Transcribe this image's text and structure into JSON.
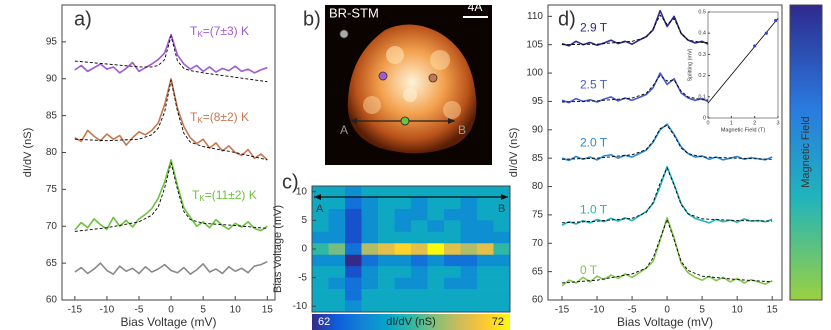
{
  "chart_data": [
    {
      "type": "line",
      "panel": "a)",
      "xlabel": "Bias Voltage (mV)",
      "ylabel": "dI/dV (nS)",
      "xlim": [
        -17,
        16.2
      ],
      "ylim": [
        60,
        100
      ],
      "xticks": [
        -15,
        -10,
        -5,
        0,
        5,
        10,
        15
      ],
      "yticks": [
        60,
        65,
        70,
        75,
        80,
        85,
        90,
        95
      ],
      "x": [
        -15,
        -14,
        -13,
        -12,
        -11,
        -10,
        -9,
        -8,
        -7,
        -6,
        -5,
        -4,
        -3,
        -2,
        -1,
        0,
        1,
        2,
        3,
        4,
        5,
        6,
        7,
        8,
        9,
        10,
        11,
        12,
        13,
        14,
        15
      ],
      "series": [
        {
          "color": "#a05ad2",
          "values": [
            91.2,
            91.8,
            91.0,
            91.5,
            92.0,
            91.3,
            91.6,
            90.8,
            91.4,
            92.2,
            91.0,
            91.5,
            92.0,
            92.6,
            93.5,
            96.0,
            93.2,
            92.0,
            91.3,
            91.8,
            91.0,
            91.6,
            90.9,
            91.4,
            91.1,
            91.7,
            91.0,
            91.3,
            90.8,
            91.2,
            91.5
          ]
        },
        {
          "color": "#c87850",
          "values": [
            82.0,
            81.5,
            83.0,
            82.2,
            81.6,
            82.5,
            81.8,
            82.3,
            81.0,
            82.0,
            82.8,
            82.4,
            83.0,
            84.0,
            86.5,
            90.0,
            86.0,
            83.5,
            82.0,
            81.2,
            81.8,
            80.6,
            81.3,
            80.2,
            80.9,
            80.0,
            79.6,
            80.4,
            79.2,
            79.8,
            79.0
          ]
        },
        {
          "color": "#6cc23e",
          "values": [
            69.5,
            70.5,
            69.8,
            71.0,
            70.2,
            69.6,
            71.2,
            70.0,
            70.8,
            69.9,
            71.0,
            71.6,
            72.4,
            73.8,
            76.0,
            79.0,
            75.5,
            72.5,
            71.2,
            70.0,
            70.6,
            69.8,
            70.9,
            70.1,
            69.6,
            70.4,
            69.9,
            70.6,
            69.7,
            69.4,
            70.0
          ]
        },
        {
          "color": "#8a8a8a",
          "values": [
            63.8,
            64.4,
            63.6,
            64.2,
            65.0,
            64.0,
            63.5,
            64.6,
            63.9,
            64.3,
            63.6,
            64.5,
            63.8,
            64.2,
            64.8,
            64.0,
            63.7,
            64.4,
            63.5,
            64.1,
            64.9,
            63.8,
            64.2,
            63.6,
            64.5,
            63.9,
            64.3,
            63.7,
            64.6,
            64.8,
            65.2
          ]
        },
        {
          "color": "#000000",
          "dashed": true,
          "x": [
            -15,
            -10,
            -5,
            -3,
            -2,
            -1,
            0,
            1,
            2,
            3,
            5,
            10,
            15
          ],
          "values": [
            92.4,
            92.0,
            91.6,
            91.6,
            91.8,
            92.6,
            95.8,
            92.4,
            91.4,
            91.1,
            90.8,
            90.2,
            89.6
          ]
        },
        {
          "color": "#000000",
          "dashed": true,
          "x": [
            -15,
            -10,
            -5,
            -3,
            -2,
            -1,
            0,
            1,
            2,
            3,
            5,
            10,
            15
          ],
          "values": [
            81.8,
            81.6,
            81.8,
            82.4,
            83.3,
            85.5,
            89.8,
            85.6,
            82.6,
            81.4,
            80.8,
            80.0,
            79.0
          ]
        },
        {
          "color": "#000000",
          "dashed": true,
          "x": [
            -15,
            -10,
            -5,
            -3,
            -2,
            -1,
            0,
            1,
            2,
            3,
            5,
            10,
            15
          ],
          "values": [
            69.3,
            69.8,
            70.6,
            71.5,
            72.6,
            75.2,
            78.6,
            75.0,
            72.0,
            70.9,
            70.4,
            70.1,
            69.7
          ]
        }
      ],
      "annotations": [
        {
          "main": "T",
          "sub": "K",
          "rest": "=(7±3) K",
          "color": "#a05ad2"
        },
        {
          "main": "T",
          "sub": "K",
          "rest": "=(8±2) K",
          "color": "#c87850"
        },
        {
          "main": "T",
          "sub": "K",
          "rest": "=(11±2) K",
          "color": "#6cc23e"
        }
      ]
    },
    {
      "type": "image",
      "panel": "b)",
      "title": "BR-STM",
      "scale_label": "4Å",
      "point_labels": [
        "A",
        "B"
      ]
    },
    {
      "type": "heatmap",
      "panel": "c)",
      "ylabel": "Bias Voltage (mV)",
      "ylim": [
        -11,
        11
      ],
      "yticks": [
        -10,
        -5,
        0,
        5,
        10
      ],
      "y": [
        10,
        8,
        6,
        4,
        2,
        0,
        -2,
        -4,
        -6,
        -8,
        -10
      ],
      "z": [
        [
          66,
          66,
          65,
          66,
          66,
          66,
          66,
          66,
          66,
          66,
          66,
          66
        ],
        [
          66,
          66,
          64,
          65,
          66,
          66,
          65,
          66,
          66,
          65,
          66,
          66
        ],
        [
          66,
          65,
          63,
          65,
          66,
          65,
          65,
          66,
          65,
          65,
          66,
          66
        ],
        [
          66,
          65,
          63,
          65,
          66,
          65,
          66,
          65,
          66,
          65,
          65,
          66
        ],
        [
          65,
          65,
          63,
          65,
          66,
          66,
          66,
          66,
          66,
          65,
          65,
          65
        ],
        [
          67,
          68,
          64,
          69,
          70,
          71,
          70,
          72,
          70,
          69,
          70,
          67
        ],
        [
          65,
          65,
          62,
          64,
          65,
          65,
          64,
          65,
          64,
          64,
          65,
          65
        ],
        [
          66,
          66,
          63,
          65,
          66,
          66,
          65,
          66,
          66,
          65,
          66,
          66
        ],
        [
          66,
          65,
          64,
          65,
          66,
          65,
          65,
          66,
          65,
          65,
          66,
          66
        ],
        [
          66,
          66,
          64,
          66,
          66,
          66,
          66,
          66,
          66,
          66,
          66,
          66
        ],
        [
          66,
          66,
          65,
          66,
          66,
          66,
          66,
          66,
          66,
          66,
          66,
          66
        ]
      ],
      "zlim": [
        62,
        72
      ],
      "colorbar_label": "dI/dV (nS)",
      "point_labels": [
        "A",
        "B"
      ],
      "colorscale": [
        "#352a87",
        "#0f5cdd",
        "#1481d6",
        "#06a4ca",
        "#2eb7a4",
        "#87bf77",
        "#d1bb59",
        "#fec832",
        "#f9fb0e"
      ]
    },
    {
      "type": "line",
      "panel": "d)",
      "xlabel": "Bias Voltage (mV)",
      "ylabel": "dI/dV (nS)",
      "xlim": [
        -17,
        16.4
      ],
      "ylim": [
        60,
        112
      ],
      "xticks": [
        -15,
        -10,
        -5,
        0,
        5,
        10,
        15
      ],
      "yticks": [
        60,
        65,
        70,
        75,
        80,
        85,
        90,
        95,
        100,
        105,
        110
      ],
      "x": [
        -15,
        -14,
        -13,
        -12,
        -11,
        -10,
        -9,
        -8,
        -7,
        -6,
        -5,
        -4,
        -3,
        -2,
        -1,
        0,
        1,
        2,
        3,
        4,
        5,
        6,
        7,
        8,
        9,
        10,
        11,
        12,
        13,
        14,
        15
      ],
      "colorbar_label": "Magnetic Field",
      "series": [
        {
          "name": "2.9 T",
          "color": "#2e2a8c",
          "values": [
            105.2,
            104.8,
            105.6,
            105.0,
            105.4,
            104.9,
            105.3,
            105.8,
            105.2,
            105.6,
            105.1,
            105.8,
            106.4,
            107.6,
            111.0,
            108.2,
            110.0,
            107.0,
            105.8,
            105.3,
            105.6,
            105.0,
            105.4,
            104.8,
            105.2,
            105.5,
            104.9,
            105.3,
            105.1,
            105.0,
            105.4
          ]
        },
        {
          "name": "2.5 T",
          "color": "#4658d2",
          "values": [
            95.2,
            94.8,
            95.5,
            95.0,
            95.3,
            94.9,
            95.4,
            95.8,
            95.1,
            95.6,
            95.2,
            95.7,
            96.2,
            97.4,
            100.0,
            98.0,
            99.0,
            96.5,
            95.6,
            95.2,
            95.5,
            94.9,
            95.3,
            94.8,
            95.2,
            95.4,
            94.9,
            95.2,
            95.0,
            94.8,
            95.3
          ]
        },
        {
          "name": "2.0 T",
          "color": "#2a8ad8",
          "values": [
            85.0,
            84.6,
            85.3,
            84.8,
            85.2,
            84.7,
            85.4,
            85.6,
            85.0,
            85.5,
            85.2,
            85.8,
            86.4,
            87.8,
            90.0,
            91.0,
            89.2,
            87.0,
            85.8,
            85.2,
            85.4,
            84.8,
            85.2,
            84.7,
            85.0,
            85.3,
            84.8,
            85.1,
            84.9,
            84.7,
            85.2
          ]
        },
        {
          "name": "1.0 T",
          "color": "#20b4bc",
          "values": [
            73.2,
            73.8,
            73.4,
            74.0,
            73.6,
            74.2,
            73.8,
            74.4,
            73.9,
            74.5,
            74.0,
            74.8,
            75.6,
            77.0,
            80.0,
            83.5,
            80.4,
            77.0,
            75.2,
            74.4,
            74.0,
            73.6,
            74.2,
            73.8,
            74.1,
            73.7,
            74.3,
            73.9,
            74.0,
            73.8,
            74.2
          ]
        },
        {
          "name": "0 T",
          "color": "#82c84c",
          "values": [
            62.5,
            63.5,
            63.0,
            64.0,
            63.2,
            64.2,
            63.6,
            64.4,
            63.8,
            64.6,
            64.0,
            64.8,
            65.6,
            66.8,
            70.5,
            74.5,
            71.0,
            66.5,
            64.8,
            64.0,
            63.5,
            64.2,
            63.4,
            64.0,
            63.2,
            63.8,
            63.0,
            63.6,
            63.2,
            62.8,
            63.4
          ]
        },
        {
          "color": "#000000",
          "dashed": true,
          "x": [
            -15,
            -10,
            -5,
            -3,
            -2,
            -1,
            0,
            1,
            2,
            3,
            5,
            10,
            15
          ],
          "values": [
            105.0,
            105.1,
            105.6,
            106.3,
            107.8,
            110.2,
            108.6,
            109.6,
            107.0,
            105.8,
            105.4,
            105.1,
            105.0
          ]
        },
        {
          "color": "#000000",
          "dashed": true,
          "x": [
            -15,
            -10,
            -5,
            -3,
            -2,
            -1,
            0,
            1,
            2,
            3,
            5,
            10,
            15
          ],
          "values": [
            94.9,
            95.1,
            95.6,
            96.4,
            97.8,
            99.6,
            98.6,
            98.8,
            96.8,
            95.8,
            95.3,
            95.0,
            94.9
          ]
        },
        {
          "color": "#000000",
          "dashed": true,
          "x": [
            -15,
            -10,
            -5,
            -3,
            -2,
            -1,
            0,
            1,
            2,
            3,
            5,
            10,
            15
          ],
          "values": [
            84.8,
            85.0,
            85.6,
            86.5,
            88.0,
            90.2,
            90.8,
            89.0,
            86.8,
            85.8,
            85.2,
            85.0,
            84.8
          ]
        },
        {
          "color": "#000000",
          "dashed": true,
          "x": [
            -15,
            -10,
            -5,
            -3,
            -2,
            -1,
            0,
            1,
            2,
            3,
            5,
            10,
            15
          ],
          "values": [
            73.6,
            73.9,
            74.4,
            75.4,
            77.2,
            80.6,
            83.3,
            80.2,
            76.8,
            75.2,
            74.3,
            74.0,
            73.9
          ]
        },
        {
          "color": "#000000",
          "dashed": true,
          "x": [
            -15,
            -10,
            -5,
            -3,
            -2,
            -1,
            0,
            1,
            2,
            3,
            5,
            10,
            15
          ],
          "values": [
            63.0,
            63.5,
            64.6,
            65.6,
            67.4,
            70.8,
            74.2,
            70.6,
            66.8,
            65.2,
            64.2,
            63.6,
            63.2
          ]
        }
      ]
    },
    {
      "type": "line",
      "xlabel": "Magnetic Field (T)",
      "ylabel": "Splitting (mV)",
      "xlim": [
        0,
        3
      ],
      "ylim": [
        0,
        0.5
      ],
      "xticks": [
        0,
        1,
        2,
        3
      ],
      "yticks": [
        0,
        0.1,
        0.2,
        0.3,
        0.4,
        0.5
      ],
      "series": [
        {
          "color": "#000000",
          "x": [
            0,
            3
          ],
          "values": [
            0.07,
            0.47
          ]
        },
        {
          "color": "#3344cc",
          "markers": true,
          "line": false,
          "x": [
            2,
            2.5,
            2.9
          ],
          "values": [
            0.34,
            0.4,
            0.46
          ]
        }
      ]
    }
  ]
}
